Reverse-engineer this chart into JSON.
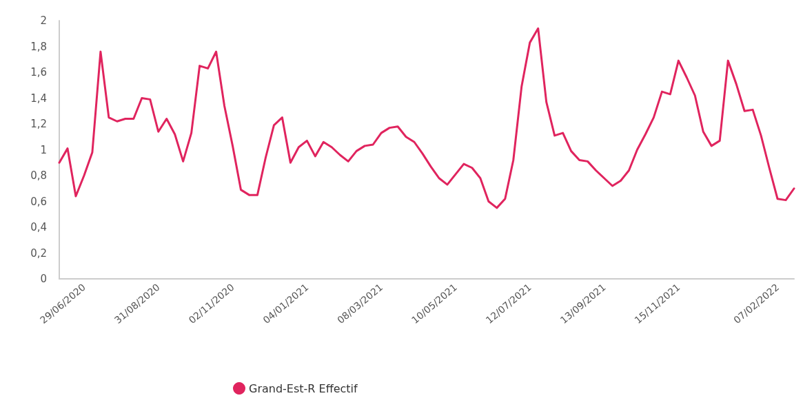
{
  "chart_data": {
    "type": "line",
    "categories": [
      null,
      null,
      null,
      "29/06/2020",
      null,
      null,
      null,
      null,
      null,
      null,
      null,
      null,
      "31/08/2020",
      null,
      null,
      null,
      null,
      null,
      null,
      null,
      null,
      "02/11/2020",
      null,
      null,
      null,
      null,
      null,
      null,
      null,
      null,
      "04/01/2021",
      null,
      null,
      null,
      null,
      null,
      null,
      null,
      null,
      "08/03/2021",
      null,
      null,
      null,
      null,
      null,
      null,
      null,
      null,
      "10/05/2021",
      null,
      null,
      null,
      null,
      null,
      null,
      null,
      null,
      "12/07/2021",
      null,
      null,
      null,
      null,
      null,
      null,
      null,
      null,
      "13/09/2021",
      null,
      null,
      null,
      null,
      null,
      null,
      null,
      null,
      "15/11/2021",
      null,
      null,
      null,
      null,
      null,
      null,
      null,
      null,
      null,
      null,
      null,
      "07/02/2022",
      null,
      null
    ],
    "series": [
      {
        "name": "Grand-Est-R Effectif",
        "color": "#e0245e",
        "values": [
          0.9,
          1.01,
          0.64,
          0.8,
          0.98,
          1.76,
          1.25,
          1.22,
          1.24,
          1.24,
          1.4,
          1.39,
          1.14,
          1.24,
          1.12,
          0.91,
          1.13,
          1.65,
          1.63,
          1.76,
          1.34,
          1.03,
          0.69,
          0.65,
          0.65,
          0.94,
          1.19,
          1.25,
          0.9,
          1.02,
          1.07,
          0.95,
          1.06,
          1.02,
          0.96,
          0.91,
          0.99,
          1.03,
          1.04,
          1.13,
          1.17,
          1.18,
          1.1,
          1.06,
          0.97,
          0.87,
          0.78,
          0.73,
          0.81,
          0.89,
          0.86,
          0.78,
          0.6,
          0.55,
          0.62,
          0.92,
          1.49,
          1.83,
          1.94,
          1.37,
          1.11,
          1.13,
          0.99,
          0.92,
          0.91,
          0.84,
          0.78,
          0.72,
          0.76,
          0.84,
          1.0,
          1.12,
          1.25,
          1.45,
          1.43,
          1.69,
          1.56,
          1.42,
          1.14,
          1.03,
          1.07,
          1.69,
          1.51,
          1.3,
          1.31,
          1.11,
          0.86,
          0.62,
          0.61,
          0.7
        ]
      }
    ],
    "ylim": [
      0,
      2
    ],
    "yticks": [
      0,
      {
        "value": 0.2,
        "label": "0,2"
      },
      {
        "value": 0.4,
        "label": "0,4"
      },
      {
        "value": 0.6,
        "label": "0,6"
      },
      {
        "value": 0.8,
        "label": "0,8"
      },
      1,
      {
        "value": 1.2,
        "label": "1,2"
      },
      {
        "value": 1.4,
        "label": "1,4"
      },
      {
        "value": 1.6,
        "label": "1,6"
      },
      {
        "value": 1.8,
        "label": "1,8"
      },
      2
    ],
    "grid": false,
    "legend": "bottom left",
    "marker": "none",
    "line_style": "solid"
  }
}
